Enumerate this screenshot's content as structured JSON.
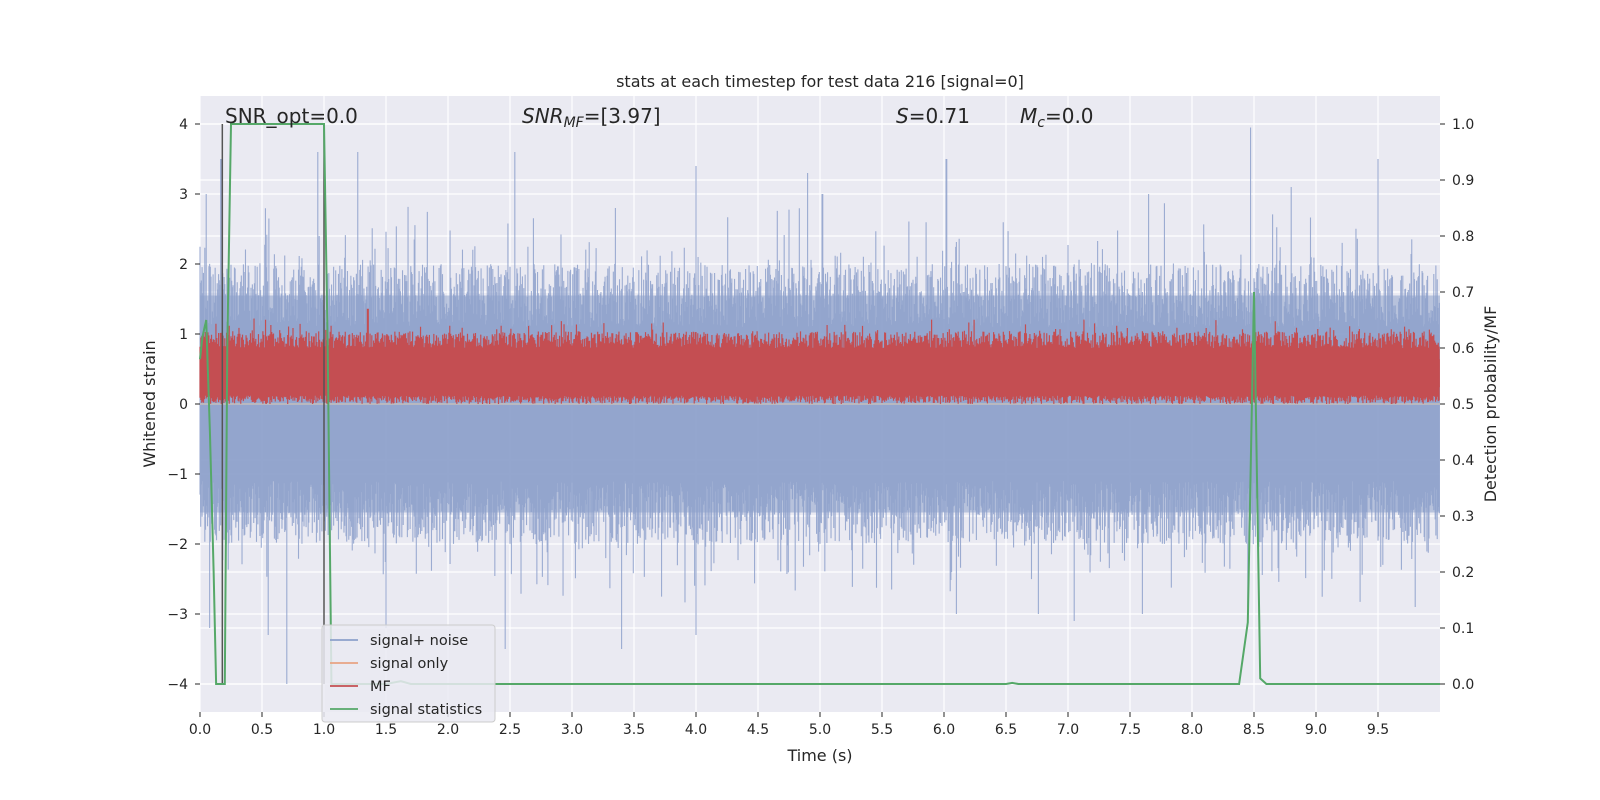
{
  "chart_data": {
    "type": "line",
    "title": "stats at each timestep for test data 216 [signal=0]",
    "xlabel": "Time (s)",
    "ylabel_left": "Whitened strain",
    "ylabel_right": "Detection probability/MF",
    "xlim": [
      0.0,
      10.0
    ],
    "ylim_left": [
      -4.4,
      4.4
    ],
    "ylim_right": [
      -0.05,
      1.05
    ],
    "x_ticks": [
      "0.0",
      "0.5",
      "1.0",
      "1.5",
      "2.0",
      "2.5",
      "3.0",
      "3.5",
      "4.0",
      "4.5",
      "5.0",
      "5.5",
      "6.0",
      "6.5",
      "7.0",
      "7.5",
      "8.0",
      "8.5",
      "9.0",
      "9.5"
    ],
    "y_ticks_left": [
      "−4",
      "−3",
      "−2",
      "−1",
      "0",
      "1",
      "2",
      "3",
      "4"
    ],
    "y_ticks_right": [
      "0.0",
      "0.1",
      "0.2",
      "0.3",
      "0.4",
      "0.5",
      "0.6",
      "0.7",
      "0.8",
      "0.9",
      "1.0"
    ],
    "grid": true,
    "legend_position": "lower-left",
    "annotations": {
      "snr_opt": "SNR_opt=0.0",
      "snr_mf": "SNR",
      "snr_mf_sub": "MF",
      "snr_mf_val": "=[3.97]",
      "s_sym": "S",
      "s_val": "=0.71",
      "mc_sym": "M",
      "mc_sub": "c",
      "mc_val": "=0.0"
    },
    "vertical_markers_x": [
      0.18,
      1.0
    ],
    "series": [
      {
        "name": "signal+ noise",
        "color": "#8da0cb",
        "axis": "left",
        "description": "noise-like band",
        "envelope_pos": 2.0,
        "envelope_neg": -2.0,
        "peaks": [
          [
            0.05,
            3.0
          ],
          [
            0.17,
            3.5
          ],
          [
            0.95,
            3.6
          ],
          [
            1.27,
            3.6
          ],
          [
            2.54,
            3.6
          ],
          [
            4.0,
            3.4
          ],
          [
            4.9,
            3.3
          ],
          [
            5.02,
            3.0
          ],
          [
            6.02,
            3.5
          ],
          [
            7.65,
            3.0
          ],
          [
            8.47,
            3.95
          ],
          [
            8.8,
            3.1
          ],
          [
            9.5,
            3.5
          ]
        ],
        "troughs": [
          [
            0.08,
            -3.2
          ],
          [
            0.55,
            -3.3
          ],
          [
            0.7,
            -4.0
          ],
          [
            1.5,
            -3.2
          ],
          [
            2.46,
            -3.5
          ],
          [
            3.4,
            -3.5
          ],
          [
            4.0,
            -3.3
          ],
          [
            6.1,
            -3.0
          ],
          [
            6.76,
            -3.0
          ],
          [
            7.05,
            -3.1
          ],
          [
            7.6,
            -3.0
          ],
          [
            8.45,
            -2.9
          ],
          [
            9.8,
            -2.9
          ]
        ]
      },
      {
        "name": "signal only",
        "color": "#e8a383",
        "axis": "left",
        "values": []
      },
      {
        "name": "MF",
        "color": "#c44e52",
        "axis": "right",
        "description": "noise band",
        "range": [
          0.5,
          0.63
        ],
        "peak": [
          1.35,
          0.67
        ]
      },
      {
        "name": "signal statistics",
        "color": "#55a868",
        "axis": "right",
        "x": [
          0.0,
          0.02,
          0.05,
          0.08,
          0.11,
          0.13,
          0.2,
          0.22,
          0.25,
          0.3,
          0.5,
          0.8,
          1.0,
          1.03,
          1.06,
          1.1,
          1.3,
          1.5,
          1.62,
          1.7,
          2.0,
          4.0,
          6.0,
          6.5,
          6.55,
          6.6,
          7.0,
          8.0,
          8.38,
          8.45,
          8.5,
          8.55,
          8.6,
          8.7,
          9.0,
          10.0
        ],
        "y": [
          0.58,
          0.62,
          0.65,
          0.45,
          0.2,
          0.0,
          0.0,
          0.6,
          1.0,
          1.0,
          1.0,
          1.0,
          1.0,
          0.6,
          0.0,
          0.0,
          0.0,
          0.0,
          0.005,
          0.0,
          0.0,
          0.0,
          0.0,
          0.0,
          0.002,
          0.0,
          0.0,
          0.0,
          0.0,
          0.11,
          0.7,
          0.01,
          0.0,
          0.0,
          0.0,
          0.0
        ]
      }
    ]
  }
}
